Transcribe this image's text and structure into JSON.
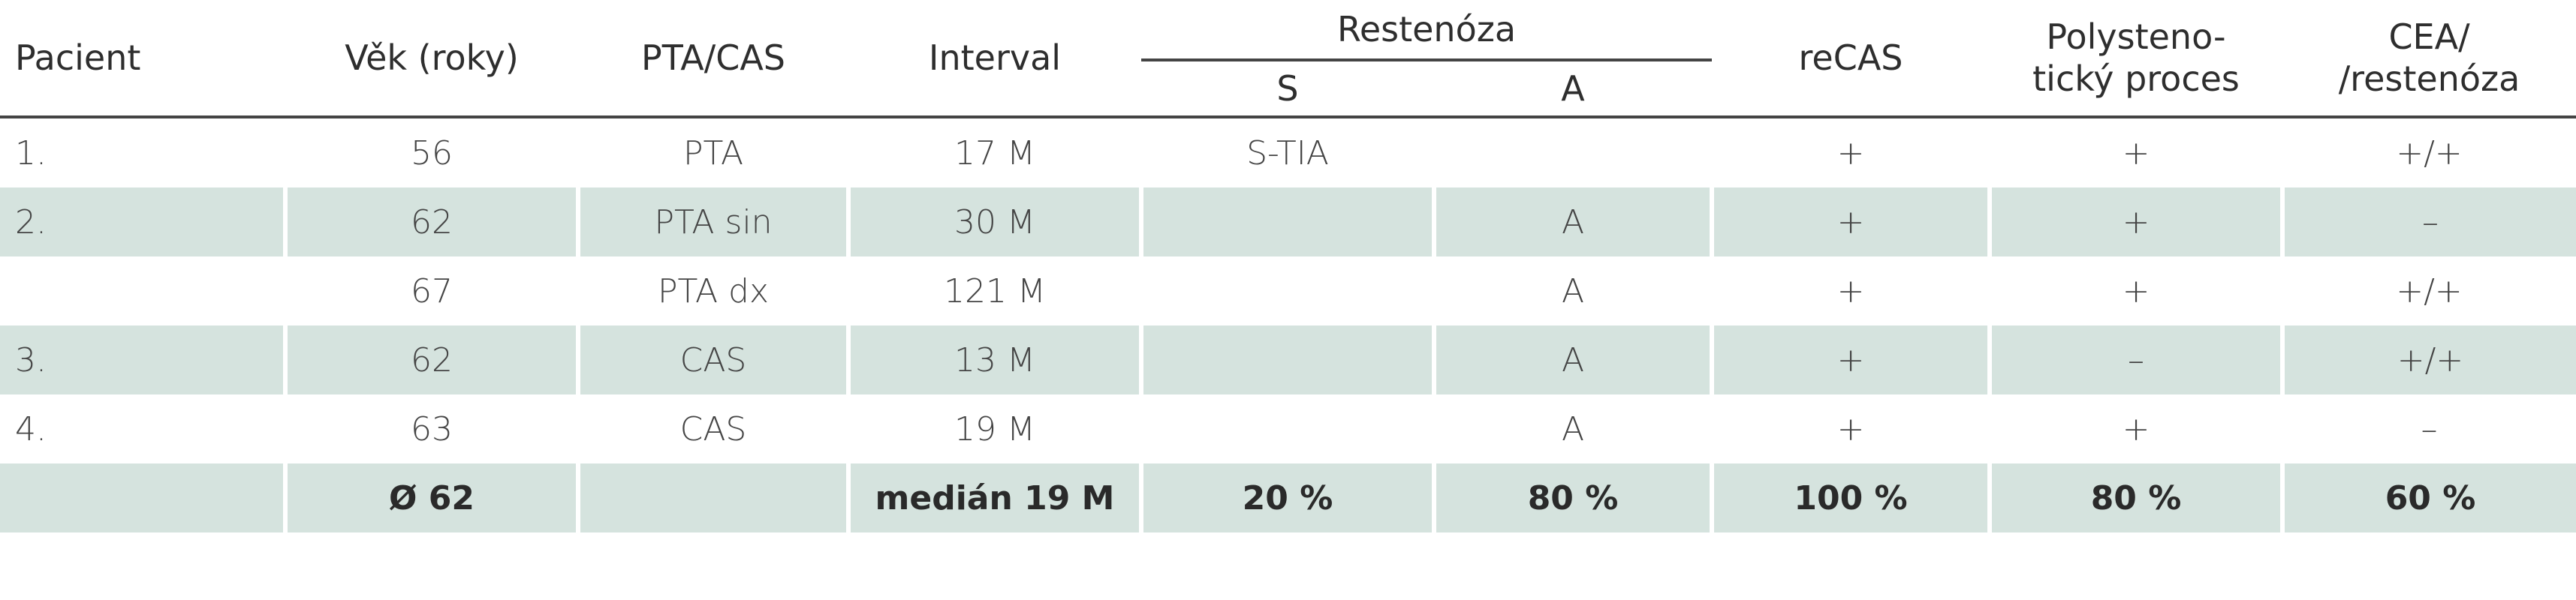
{
  "header": {
    "pacient": "Pacient",
    "vek": "Věk (roky)",
    "pta_cas": "PTA/CAS",
    "interval": "Interval",
    "restenoza": "Restenóza",
    "s": "S",
    "a": "A",
    "recas": "reCAS",
    "polystenoticky_line1": "Polysteno-",
    "polystenoticky_line2": "tický proces",
    "cea_line1": "CEA/",
    "cea_line2": "/restenóza"
  },
  "rows": [
    {
      "pacient": "1.",
      "vek": "56",
      "pta_cas": "PTA",
      "interval": "17 M",
      "s": "S-TIA",
      "a": "",
      "recas": "+",
      "poly": "+",
      "cea": "+/+"
    },
    {
      "pacient": "2.",
      "vek": "62",
      "pta_cas": "PTA sin",
      "interval": "30 M",
      "s": "",
      "a": "A",
      "recas": "+",
      "poly": "+",
      "cea": "–"
    },
    {
      "pacient": "",
      "vek": "67",
      "pta_cas": "PTA dx",
      "interval": "121 M",
      "s": "",
      "a": "A",
      "recas": "+",
      "poly": "+",
      "cea": "+/+"
    },
    {
      "pacient": "3.",
      "vek": "62",
      "pta_cas": "CAS",
      "interval": "13 M",
      "s": "",
      "a": "A",
      "recas": "+",
      "poly": "–",
      "cea": "+/+"
    },
    {
      "pacient": "4.",
      "vek": "63",
      "pta_cas": "CAS",
      "interval": "19 M",
      "s": "",
      "a": "A",
      "recas": "+",
      "poly": "+",
      "cea": "–"
    }
  ],
  "summary": {
    "pacient": "",
    "vek": "Ø 62",
    "pta_cas": "",
    "interval": "medián 19 M",
    "s": "20 %",
    "a": "80 %",
    "recas": "100 %",
    "poly": "80 %",
    "cea": "60 %"
  },
  "colors": {
    "shade": "#d5e3de",
    "rule": "#444444"
  }
}
